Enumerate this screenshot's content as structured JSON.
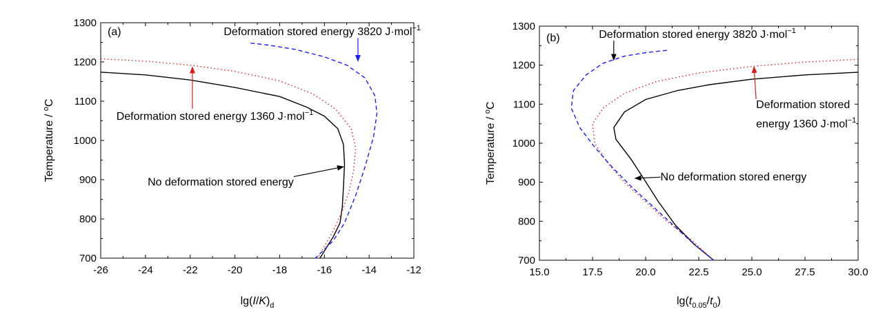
{
  "chart_data": [
    {
      "type": "line",
      "panel_label": "(a)",
      "xlabel": "lg(I/K)d",
      "xlabel_parts": {
        "base": "lg(",
        "italic": "I",
        "mid": "/",
        "italic2": "K",
        "close": ")",
        "sub": "d"
      },
      "ylabel": "Temperature / °C",
      "xlim": [
        -26,
        -12
      ],
      "ylim": [
        700,
        1300
      ],
      "xticks": [
        "-26",
        "-24",
        "-22",
        "-20",
        "-18",
        "-16",
        "-14",
        "-12"
      ],
      "yticks": [
        "700",
        "800",
        "900",
        "1000",
        "1100",
        "1200",
        "1300"
      ],
      "series": [
        {
          "name": "No deformation stored energy",
          "color": "#000000",
          "style": "solid",
          "points": [
            [
              -26,
              1174
            ],
            [
              -24,
              1167
            ],
            [
              -22,
              1154
            ],
            [
              -20,
              1135
            ],
            [
              -18,
              1112
            ],
            [
              -16.8,
              1085
            ],
            [
              -16,
              1062
            ],
            [
              -15.4,
              1030
            ],
            [
              -15.15,
              990
            ],
            [
              -15.1,
              940
            ],
            [
              -15.15,
              880
            ],
            [
              -15.2,
              830
            ],
            [
              -15.3,
              790
            ],
            [
              -15.6,
              755
            ],
            [
              -16.2,
              700
            ]
          ]
        },
        {
          "name": "Deformation stored energy 1360 J·mol−1",
          "color": "#e0191f",
          "style": "dotted",
          "points": [
            [
              -26,
              1208
            ],
            [
              -24,
              1202
            ],
            [
              -22,
              1192
            ],
            [
              -20,
              1176
            ],
            [
              -18,
              1152
            ],
            [
              -16.5,
              1118
            ],
            [
              -15.5,
              1080
            ],
            [
              -14.8,
              1030
            ],
            [
              -14.6,
              980
            ],
            [
              -14.7,
              920
            ],
            [
              -14.9,
              870
            ],
            [
              -15.2,
              820
            ],
            [
              -15.6,
              770
            ],
            [
              -16.3,
              700
            ]
          ]
        },
        {
          "name": "Deformation stored energy 3820 J·mol−1",
          "color": "#1a1aff",
          "style": "dashed",
          "points": [
            [
              -19.3,
              1248
            ],
            [
              -18.5,
              1243
            ],
            [
              -17.3,
              1232
            ],
            [
              -16,
              1213
            ],
            [
              -15,
              1192
            ],
            [
              -14.2,
              1160
            ],
            [
              -13.75,
              1115
            ],
            [
              -13.65,
              1070
            ],
            [
              -13.8,
              1010
            ],
            [
              -14.2,
              930
            ],
            [
              -14.6,
              860
            ],
            [
              -15.1,
              790
            ],
            [
              -15.6,
              745
            ],
            [
              -16.4,
              700
            ]
          ]
        }
      ],
      "annotations": [
        {
          "text": "Deformation stored energy 3820 J·mol",
          "sup": "−1",
          "x": -20.5,
          "y": 1268,
          "arrow_to": [
            -14.5,
            1202
          ],
          "arrow_color": "#1a1aff"
        },
        {
          "text": "Deformation stored energy 1360 J·mol",
          "sup": "−1",
          "x": -25.3,
          "y": 1053,
          "arrow_to": [
            -21.9,
            1187
          ],
          "arrow_color": "#e0191f"
        },
        {
          "text": "No deformation stored energy",
          "x": -23.9,
          "y": 885,
          "arrow_to": [
            -15.15,
            933
          ],
          "arrow_color": "#000000"
        }
      ]
    },
    {
      "type": "line",
      "panel_label": "(b)",
      "xlabel": "lg(t0.05/t0)",
      "xlabel_parts": {
        "base": "lg(",
        "t1": "t",
        "s1": "0.05",
        "slash": "/",
        "t2": "t",
        "s2": "0",
        "close": ")"
      },
      "ylabel": "Temperature / °C",
      "xlim": [
        15,
        30
      ],
      "ylim": [
        700,
        1300
      ],
      "xticks": [
        "15.0",
        "17.5",
        "20.0",
        "22.5",
        "25.0",
        "27.5",
        "30.0"
      ],
      "yticks": [
        "700",
        "800",
        "900",
        "1000",
        "1100",
        "1200",
        "1300"
      ],
      "series": [
        {
          "name": "No deformation stored energy",
          "color": "#000000",
          "style": "solid",
          "points": [
            [
              30,
              1182
            ],
            [
              27.5,
              1175
            ],
            [
              25,
              1164
            ],
            [
              23,
              1150
            ],
            [
              21.5,
              1135
            ],
            [
              20,
              1112
            ],
            [
              19,
              1080
            ],
            [
              18.5,
              1040
            ],
            [
              18.6,
              1010
            ],
            [
              19.3,
              960
            ],
            [
              19.9,
              910
            ],
            [
              20.6,
              850
            ],
            [
              21.4,
              790
            ],
            [
              22.3,
              740
            ],
            [
              23.2,
              700
            ]
          ]
        },
        {
          "name": "Deformation stored energy 1360 J·mol−1",
          "color": "#e0191f",
          "style": "dotted",
          "points": [
            [
              30,
              1215
            ],
            [
              27.5,
              1208
            ],
            [
              25,
              1197
            ],
            [
              22.5,
              1180
            ],
            [
              20.5,
              1158
            ],
            [
              19,
              1128
            ],
            [
              18,
              1090
            ],
            [
              17.5,
              1050
            ],
            [
              17.6,
              1000
            ],
            [
              18.2,
              950
            ],
            [
              19,
              900
            ],
            [
              20,
              850
            ],
            [
              21,
              800
            ],
            [
              22.2,
              750
            ],
            [
              23.2,
              700
            ]
          ]
        },
        {
          "name": "Deformation stored energy 3820 J·mol−1",
          "color": "#1a1aff",
          "style": "dashed",
          "points": [
            [
              21,
              1238
            ],
            [
              20,
              1232
            ],
            [
              19,
              1223
            ],
            [
              18,
              1205
            ],
            [
              17.2,
              1175
            ],
            [
              16.6,
              1135
            ],
            [
              16.5,
              1090
            ],
            [
              16.9,
              1040
            ],
            [
              17.6,
              990
            ],
            [
              18.4,
              940
            ],
            [
              19.3,
              890
            ],
            [
              20.3,
              840
            ],
            [
              21.3,
              790
            ],
            [
              22.3,
              740
            ],
            [
              23.2,
              700
            ]
          ]
        }
      ],
      "annotations": [
        {
          "text": "Deformation stored energy 3820 J·mol",
          "sup": "−1",
          "x": 17.8,
          "y": 1270,
          "arrow_to": [
            18.5,
            1213
          ],
          "arrow_color": "#000000"
        },
        {
          "text": "Deformation stored",
          "text2": "energy 1360 J·mol",
          "sup": "−1",
          "x": 25.2,
          "y": 1090,
          "arrow_to": [
            25.1,
            1196
          ],
          "arrow_color": "#e0191f"
        },
        {
          "text": "No deformation stored energy",
          "x": 20.7,
          "y": 905,
          "arrow_to": [
            19.5,
            910
          ],
          "arrow_color": "#000000"
        }
      ]
    }
  ]
}
